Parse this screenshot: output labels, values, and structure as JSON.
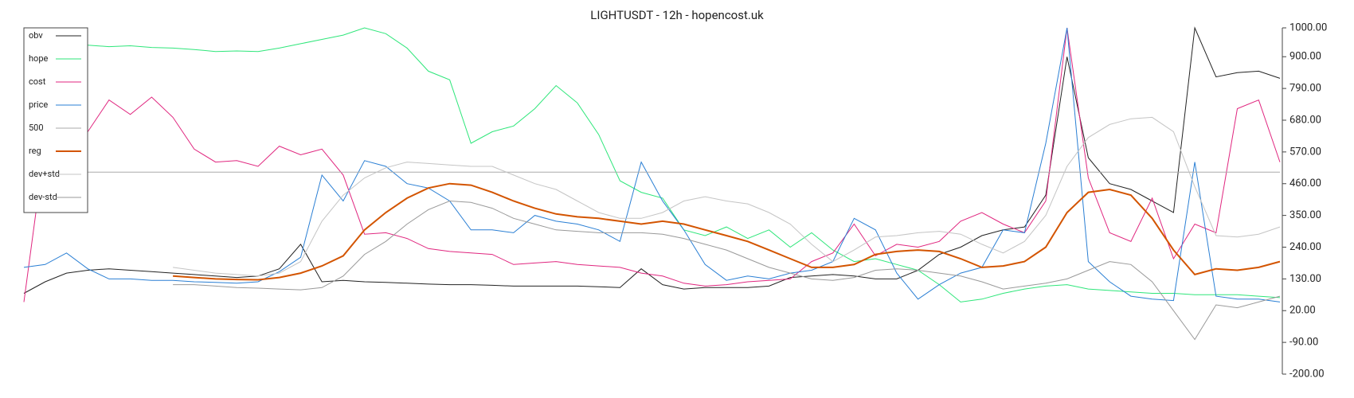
{
  "chart_data": {
    "type": "line",
    "title": "LIGHTUSDT - 12h - hopencost.uk",
    "ylim": [
      -200,
      1000
    ],
    "yticks": [
      {
        "value": 1000,
        "label": "1000.00"
      },
      {
        "value": 900,
        "label": "900.00"
      },
      {
        "value": 790,
        "label": "790.00"
      },
      {
        "value": 680,
        "label": "680.00"
      },
      {
        "value": 570,
        "label": "570.00"
      },
      {
        "value": 460,
        "label": "460.00"
      },
      {
        "value": 350,
        "label": "350.00"
      },
      {
        "value": 240,
        "label": "240.00"
      },
      {
        "value": 130,
        "label": "130.00"
      },
      {
        "value": 20,
        "label": "20.00"
      },
      {
        "value": -90,
        "label": "-90.00"
      },
      {
        "value": -200,
        "label": "-200.00"
      }
    ],
    "legend": "upper left",
    "series": [
      {
        "name": "obv",
        "color": "#222222",
        "width": 1,
        "values": [
          80,
          120,
          150,
          160,
          165,
          160,
          155,
          150,
          145,
          140,
          135,
          140,
          165,
          250,
          120,
          125,
          120,
          118,
          115,
          112,
          110,
          110,
          108,
          105,
          105,
          105,
          105,
          103,
          100,
          165,
          110,
          95,
          100,
          100,
          100,
          105,
          135,
          140,
          145,
          140,
          130,
          130,
          160,
          215,
          240,
          280,
          300,
          310,
          420,
          900,
          550,
          460,
          440,
          400,
          360,
          1000,
          830,
          845,
          850,
          825
        ]
      },
      {
        "name": "hope",
        "color": "#2ee67a",
        "width": 1,
        "values": [
          945,
          940,
          940,
          940,
          935,
          938,
          932,
          930,
          925,
          918,
          920,
          918,
          930,
          945,
          960,
          975,
          1000,
          980,
          930,
          850,
          820,
          600,
          640,
          660,
          720,
          800,
          740,
          630,
          470,
          430,
          410,
          300,
          280,
          310,
          270,
          300,
          240,
          290,
          230,
          190,
          200,
          180,
          160,
          110,
          50,
          60,
          80,
          95,
          105,
          110,
          95,
          90,
          85,
          80,
          80,
          75,
          75,
          75,
          70,
          65
        ]
      },
      {
        "name": "cost",
        "color": "#e0267f",
        "width": 1,
        "values": [
          50,
          600,
          620,
          640,
          750,
          700,
          760,
          690,
          580,
          535,
          540,
          520,
          590,
          560,
          580,
          490,
          285,
          290,
          270,
          235,
          225,
          220,
          215,
          180,
          185,
          190,
          180,
          175,
          170,
          150,
          140,
          115,
          105,
          110,
          120,
          125,
          130,
          190,
          220,
          320,
          210,
          250,
          240,
          260,
          330,
          360,
          320,
          290,
          400,
          1000,
          480,
          290,
          260,
          410,
          200,
          320,
          290,
          720,
          750,
          535
        ]
      },
      {
        "name": "price",
        "color": "#2a7fd4",
        "width": 1,
        "values": [
          170,
          180,
          220,
          165,
          130,
          130,
          125,
          125,
          120,
          118,
          115,
          120,
          155,
          205,
          490,
          400,
          540,
          520,
          460,
          445,
          400,
          300,
          300,
          290,
          350,
          330,
          320,
          300,
          260,
          535,
          400,
          300,
          180,
          125,
          140,
          130,
          150,
          160,
          190,
          340,
          300,
          150,
          60,
          110,
          150,
          170,
          300,
          290,
          600,
          1000,
          190,
          120,
          70,
          60,
          55,
          535,
          70,
          60,
          60,
          50
        ]
      },
      {
        "name": "500",
        "color": "#aaaaaa",
        "width": 1,
        "values": [
          500,
          500,
          500,
          500,
          500,
          500,
          500,
          500,
          500,
          500,
          500,
          500,
          500,
          500,
          500,
          500,
          500,
          500,
          500,
          500,
          500,
          500,
          500,
          500,
          500,
          500,
          500,
          500,
          500,
          500,
          500,
          500,
          500,
          500,
          500,
          500,
          500,
          500,
          500,
          500,
          500,
          500,
          500,
          500,
          500,
          500,
          500,
          500,
          500,
          500,
          500,
          500,
          500,
          500,
          500,
          500,
          500,
          500,
          500,
          500
        ]
      },
      {
        "name": "reg",
        "color": "#d35400",
        "width": 2,
        "values": [
          null,
          null,
          null,
          null,
          null,
          null,
          null,
          140,
          135,
          130,
          128,
          127,
          135,
          150,
          175,
          210,
          300,
          360,
          410,
          445,
          460,
          455,
          430,
          400,
          375,
          355,
          345,
          340,
          330,
          320,
          330,
          320,
          300,
          280,
          260,
          230,
          200,
          170,
          170,
          180,
          215,
          225,
          230,
          225,
          200,
          170,
          175,
          190,
          240,
          360,
          430,
          440,
          420,
          340,
          230,
          145,
          165,
          160,
          170,
          190
        ]
      },
      {
        "name": "dev+std",
        "color": "#c4c4c4",
        "width": 1,
        "values": [
          null,
          null,
          null,
          null,
          null,
          null,
          null,
          170,
          160,
          150,
          145,
          140,
          150,
          190,
          330,
          420,
          480,
          515,
          535,
          530,
          525,
          520,
          520,
          490,
          460,
          440,
          400,
          360,
          340,
          340,
          360,
          400,
          415,
          400,
          390,
          360,
          320,
          250,
          190,
          230,
          275,
          280,
          290,
          295,
          285,
          250,
          220,
          260,
          350,
          520,
          620,
          665,
          685,
          690,
          640,
          450,
          280,
          275,
          285,
          310
        ]
      },
      {
        "name": "dev-std",
        "color": "#999999",
        "width": 1,
        "values": [
          null,
          null,
          null,
          null,
          null,
          null,
          null,
          110,
          110,
          105,
          100,
          98,
          95,
          92,
          100,
          140,
          215,
          260,
          320,
          370,
          400,
          395,
          375,
          340,
          320,
          300,
          295,
          290,
          290,
          290,
          285,
          270,
          250,
          230,
          200,
          170,
          150,
          130,
          125,
          135,
          160,
          165,
          160,
          150,
          140,
          120,
          95,
          105,
          115,
          130,
          160,
          190,
          180,
          120,
          20,
          -80,
          40,
          30,
          50,
          70
        ]
      }
    ]
  }
}
